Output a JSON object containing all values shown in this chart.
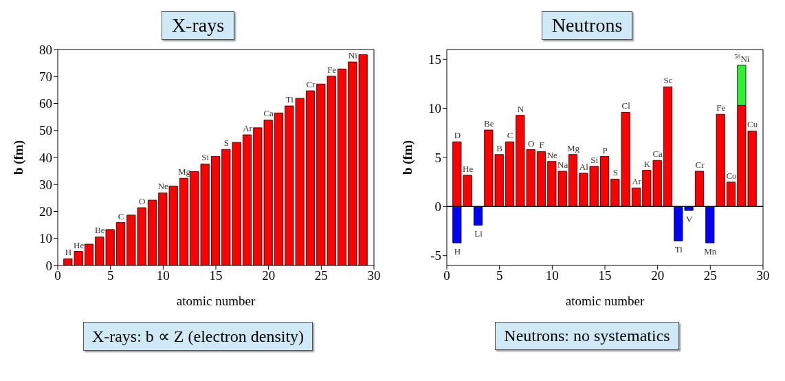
{
  "chart_data": [
    {
      "type": "bar",
      "title": "X-rays",
      "xlabel": "atomic number",
      "ylabel": "b (fm)",
      "x": [
        1,
        2,
        3,
        4,
        5,
        6,
        7,
        8,
        9,
        10,
        11,
        12,
        13,
        14,
        15,
        16,
        17,
        18,
        19,
        20,
        21,
        22,
        23,
        24,
        25,
        26,
        27,
        28,
        29
      ],
      "values": [
        2.5,
        5.2,
        7.9,
        10.6,
        13.3,
        15.9,
        18.7,
        21.4,
        24.2,
        26.9,
        29.4,
        32.3,
        34.8,
        37.6,
        40.4,
        43.0,
        45.6,
        48.4,
        51.0,
        53.9,
        56.5,
        59.1,
        61.9,
        64.7,
        67.2,
        70.1,
        72.8,
        75.4,
        78.1
      ],
      "color": "#ff0000",
      "xlim": [
        0,
        30
      ],
      "xticks": [
        0,
        5,
        10,
        15,
        20,
        25,
        30
      ],
      "ylim": [
        0,
        80
      ],
      "yticks": [
        0,
        10,
        20,
        30,
        40,
        50,
        60,
        70,
        80
      ],
      "annotations": [
        {
          "text": "H",
          "x": 1,
          "y": 2.5
        },
        {
          "text": "He",
          "x": 2,
          "y": 5.2
        },
        {
          "text": "Be",
          "x": 4,
          "y": 10.6
        },
        {
          "text": "C",
          "x": 6,
          "y": 15.9
        },
        {
          "text": "O",
          "x": 8,
          "y": 21.4
        },
        {
          "text": "Ne",
          "x": 10,
          "y": 26.9
        },
        {
          "text": "Mg",
          "x": 12,
          "y": 32.3
        },
        {
          "text": "Si",
          "x": 14,
          "y": 37.6
        },
        {
          "text": "S",
          "x": 16,
          "y": 43.0
        },
        {
          "text": "Ar",
          "x": 18,
          "y": 48.4
        },
        {
          "text": "Ca",
          "x": 20,
          "y": 53.9
        },
        {
          "text": "Ti",
          "x": 22,
          "y": 59.1
        },
        {
          "text": "Cr",
          "x": 24,
          "y": 64.7
        },
        {
          "text": "Fe",
          "x": 26,
          "y": 70.1
        },
        {
          "text": "Ni",
          "x": 28,
          "y": 75.4
        },
        "X-rays: b ∝ Z (electron density)"
      ]
    },
    {
      "type": "bar",
      "title": "Neutrons",
      "xlabel": "atomic number",
      "ylabel": "b (fm)",
      "x": [
        1,
        2,
        3,
        4,
        5,
        6,
        7,
        8,
        9,
        10,
        11,
        12,
        13,
        14,
        15,
        16,
        17,
        18,
        19,
        20,
        21,
        22,
        23,
        24,
        25,
        26,
        27,
        28,
        29
      ],
      "stacked": true,
      "series": [
        {
          "color": "#ff0000",
          "values": [
            6.6,
            3.2,
            null,
            7.8,
            5.3,
            6.6,
            9.3,
            5.8,
            5.6,
            4.6,
            3.6,
            5.3,
            3.4,
            4.1,
            5.1,
            2.8,
            9.6,
            1.9,
            3.7,
            4.7,
            12.2,
            null,
            null,
            3.6,
            null,
            9.4,
            2.5,
            10.3,
            7.7
          ]
        },
        {
          "color": "#0000ff",
          "values": [
            -3.7,
            null,
            -1.9,
            null,
            null,
            null,
            null,
            null,
            null,
            null,
            null,
            null,
            null,
            null,
            null,
            null,
            null,
            null,
            null,
            null,
            null,
            -3.5,
            -0.4,
            null,
            -3.7,
            null,
            null,
            null,
            null
          ]
        },
        {
          "color": "#33ee33",
          "values": [
            null,
            null,
            null,
            null,
            null,
            null,
            null,
            null,
            null,
            null,
            null,
            null,
            null,
            null,
            null,
            null,
            null,
            null,
            null,
            null,
            null,
            null,
            null,
            null,
            null,
            null,
            null,
            4.1,
            null
          ]
        }
      ],
      "xlim": [
        0,
        30
      ],
      "xticks": [
        0,
        5,
        10,
        15,
        20,
        25,
        30
      ],
      "ylim": [
        -6,
        16
      ],
      "yticks": [
        -5,
        0,
        5,
        10,
        15
      ],
      "ref_lines": [
        {
          "axis": "y",
          "value": 0,
          "color": "#000000"
        }
      ],
      "annotations": [
        {
          "text": "H",
          "x": 1,
          "y": -3.7
        },
        {
          "text": "D",
          "x": 1,
          "y": 6.6
        },
        {
          "text": "He",
          "x": 2,
          "y": 3.2
        },
        {
          "text": "Li",
          "x": 3,
          "y": -1.9
        },
        {
          "text": "Be",
          "x": 4,
          "y": 7.8
        },
        {
          "text": "B",
          "x": 5,
          "y": 5.3
        },
        {
          "text": "C",
          "x": 6,
          "y": 6.6
        },
        {
          "text": "N",
          "x": 7,
          "y": 9.3
        },
        {
          "text": "O",
          "x": 8,
          "y": 5.8
        },
        {
          "text": "F",
          "x": 9,
          "y": 5.6
        },
        {
          "text": "Ne",
          "x": 10,
          "y": 4.6
        },
        {
          "text": "Na",
          "x": 11,
          "y": 3.6
        },
        {
          "text": "Mg",
          "x": 12,
          "y": 5.3
        },
        {
          "text": "Al",
          "x": 13,
          "y": 3.4
        },
        {
          "text": "Si",
          "x": 14,
          "y": 4.1
        },
        {
          "text": "P",
          "x": 15,
          "y": 5.1
        },
        {
          "text": "S",
          "x": 16,
          "y": 2.8
        },
        {
          "text": "Cl",
          "x": 17,
          "y": 9.6
        },
        {
          "text": "Ar",
          "x": 18,
          "y": 1.9
        },
        {
          "text": "K",
          "x": 19,
          "y": 3.7
        },
        {
          "text": "Ca",
          "x": 20,
          "y": 4.7
        },
        {
          "text": "Sc",
          "x": 21,
          "y": 12.2
        },
        {
          "text": "Ti",
          "x": 22,
          "y": -3.5
        },
        {
          "text": "V",
          "x": 23,
          "y": -0.4
        },
        {
          "text": "Cr",
          "x": 24,
          "y": 3.6
        },
        {
          "text": "Mn",
          "x": 25,
          "y": -3.7
        },
        {
          "text": "Fe",
          "x": 26,
          "y": 9.4
        },
        {
          "text": "Co",
          "x": 27,
          "y": 2.5
        },
        {
          "text": "$^{58}$Ni",
          "x": 28,
          "y": 14.4
        },
        {
          "text": "Cu",
          "x": 29,
          "y": 7.7
        },
        "Neutrons: no systematics"
      ]
    }
  ]
}
